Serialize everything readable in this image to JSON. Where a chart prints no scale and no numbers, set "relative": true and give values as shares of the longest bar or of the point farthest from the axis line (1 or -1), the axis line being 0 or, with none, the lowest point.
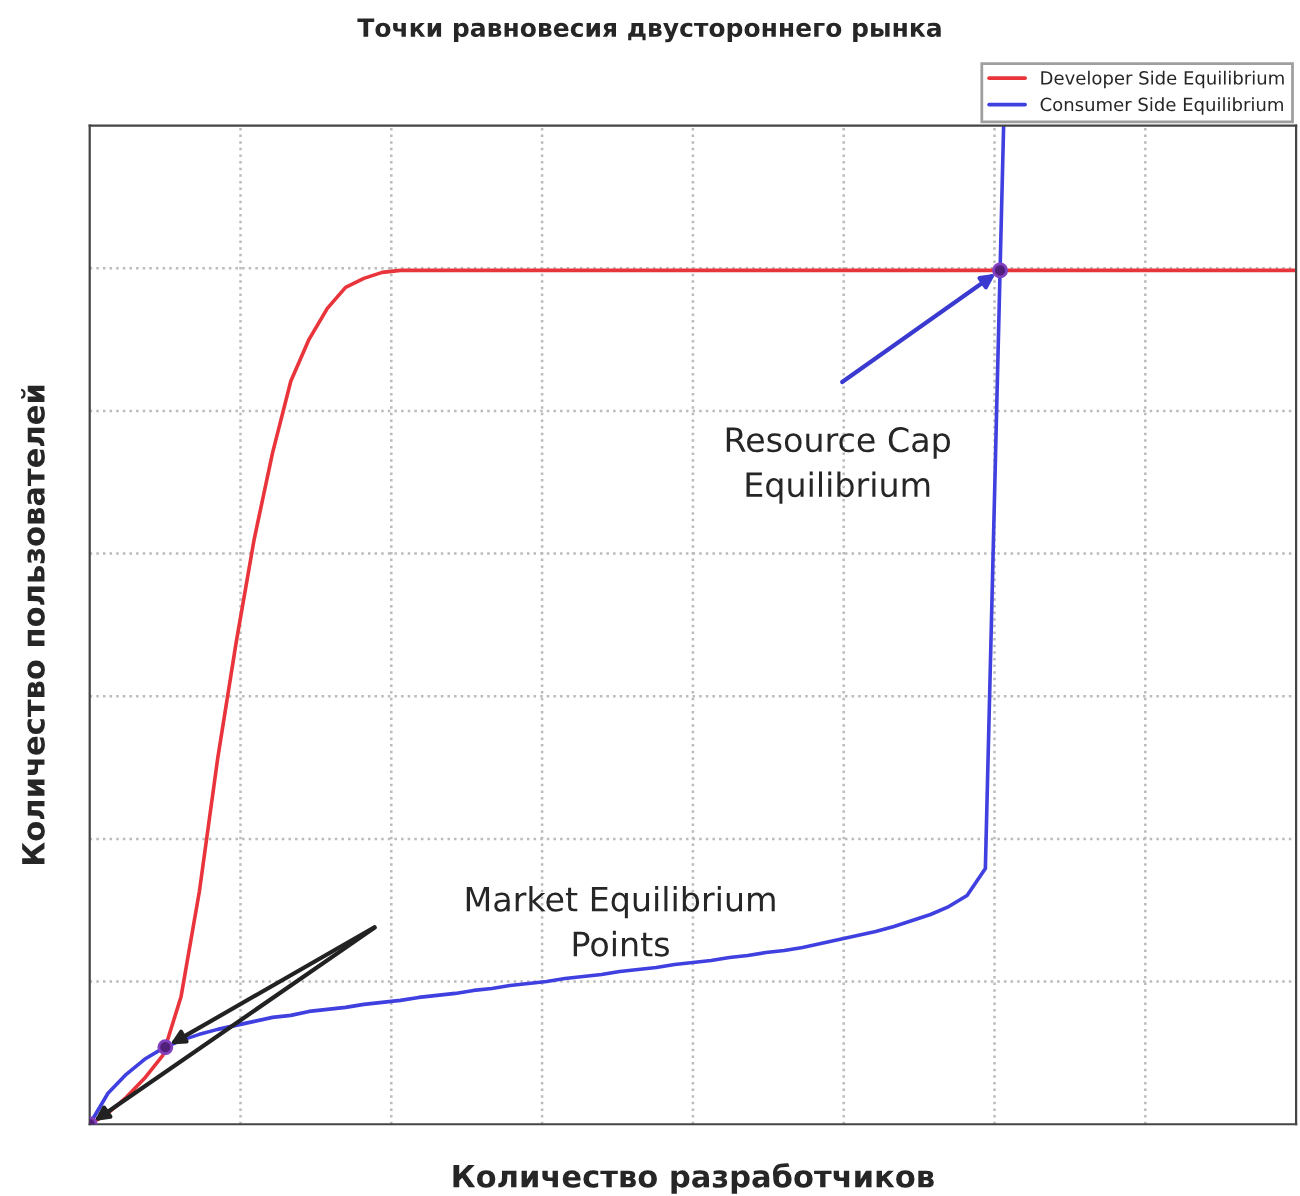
{
  "chart_data": {
    "type": "line",
    "title": "Точки равновесия двустороннего рынка",
    "xlabel": "Количество разработчиков",
    "ylabel": "Количество пользователей",
    "relative": true,
    "tick_labels": false,
    "grid": true,
    "legend": "top right",
    "line_style": "solid",
    "categories": [
      null,
      null,
      null,
      null,
      null,
      null,
      null,
      null,
      null,
      null,
      null,
      null,
      null,
      null,
      null,
      null,
      null,
      null,
      null,
      null,
      null,
      null,
      null,
      null,
      null,
      null,
      null,
      null,
      null,
      null,
      null,
      null,
      null,
      null,
      null,
      null,
      null,
      null,
      null,
      null,
      null,
      null,
      null,
      null,
      null,
      null,
      null,
      null,
      null,
      null,
      null,
      null,
      null,
      null,
      null,
      null,
      null,
      null,
      null,
      null,
      null,
      null,
      null,
      null,
      null,
      null,
      null
    ],
    "series": [
      {
        "name": "Developer Side Equilibrium",
        "color": "#e8343a",
        "values": [
          0,
          0.011,
          0.027,
          0.046,
          0.069,
          0.128,
          0.233,
          0.366,
          0.481,
          0.586,
          0.672,
          0.744,
          0.786,
          0.817,
          0.838,
          0.847,
          0.853,
          0.855,
          0.855,
          0.855,
          0.855,
          0.855,
          0.855,
          0.855,
          0.855,
          0.855,
          0.855,
          0.855,
          0.855,
          0.855,
          0.855,
          0.855,
          0.855,
          0.855,
          0.855,
          0.855,
          0.855,
          0.855,
          0.855,
          0.855,
          0.855,
          0.855,
          0.855,
          0.855,
          0.855,
          0.855,
          0.855,
          0.855,
          0.855,
          0.855,
          0.855,
          0.855,
          0.855,
          0.855,
          0.855,
          0.855,
          0.855,
          0.855,
          0.855,
          0.855,
          0.855,
          0.855,
          0.855,
          0.855,
          0.855,
          0.855,
          0.855
        ]
      },
      {
        "name": "Consumer Side Equilibrium",
        "color": "#4040e0",
        "values": [
          0,
          0.031,
          0.05,
          0.065,
          0.076,
          0.084,
          0.09,
          0.095,
          0.099,
          0.103,
          0.107,
          0.109,
          0.113,
          0.115,
          0.117,
          0.12,
          0.122,
          0.124,
          0.127,
          0.129,
          0.131,
          0.134,
          0.136,
          0.139,
          0.141,
          0.143,
          0.146,
          0.148,
          0.15,
          0.153,
          0.155,
          0.157,
          0.16,
          0.162,
          0.164,
          0.167,
          0.169,
          0.172,
          0.174,
          0.177,
          0.181,
          0.185,
          0.189,
          0.193,
          0.198,
          0.204,
          0.21,
          0.218,
          0.229,
          0.256,
          1,
          null,
          null,
          null,
          null,
          null,
          null,
          null,
          null,
          null,
          null,
          null,
          null,
          null,
          null,
          null,
          null
        ]
      }
    ],
    "annotations": [
      "Resource Cap\nEquilibrium",
      "Market Equilibrium\nPoints"
    ]
  }
}
